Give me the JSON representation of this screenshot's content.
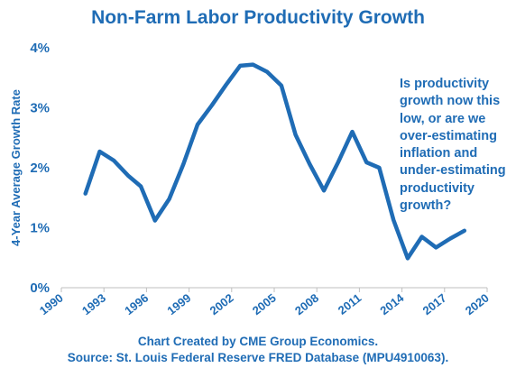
{
  "chart_data": {
    "type": "line",
    "title": "Non-Farm Labor Productivity Growth",
    "ylabel": "4-Year Average Growth Rate",
    "xlabel": "",
    "xlim": [
      1990,
      2020
    ],
    "ylim": [
      0,
      4
    ],
    "x_ticks": [
      "1990",
      "1993",
      "1996",
      "1999",
      "2002",
      "2005",
      "2008",
      "2011",
      "2014",
      "2017",
      "2020"
    ],
    "y_ticks": [
      "0%",
      "1%",
      "2%",
      "3%",
      "4%"
    ],
    "series": [
      {
        "color": "#1f6cb5",
        "x": [
          1991.7,
          1992.7,
          1993.7,
          1994.7,
          1995.6,
          1996.6,
          1997.6,
          1998.6,
          1999.6,
          2000.6,
          2001.6,
          2002.6,
          2003.5,
          2004.5,
          2005.5,
          2006.5,
          2007.5,
          2008.5,
          2009.5,
          2010.5,
          2011.5,
          2012.4,
          2013.4,
          2014.4,
          2015.4,
          2016.4,
          2017.4,
          2018.4
        ],
        "y": [
          1.57,
          2.27,
          2.12,
          1.87,
          1.69,
          1.12,
          1.48,
          2.06,
          2.72,
          3.04,
          3.38,
          3.7,
          3.72,
          3.6,
          3.37,
          2.55,
          2.06,
          1.62,
          2.09,
          2.6,
          2.09,
          2.0,
          1.13,
          0.49,
          0.85,
          0.67,
          0.82,
          0.95
        ]
      }
    ],
    "grid": false,
    "legend": "none",
    "annotations": [
      {
        "lines": [
          "Is productivity",
          "growth now this",
          "low, or are we",
          "over-estimating",
          "inflation and",
          "under-estimating",
          "productivity",
          "growth?"
        ]
      }
    ]
  },
  "source_note": {
    "line1": "Chart Created by CME Group Economics.",
    "line2": "Source: St. Louis Federal Reserve FRED Database (MPU4910063)."
  },
  "colors": {
    "primary": "#1f6cb5",
    "axis": "#bfbfbf"
  }
}
